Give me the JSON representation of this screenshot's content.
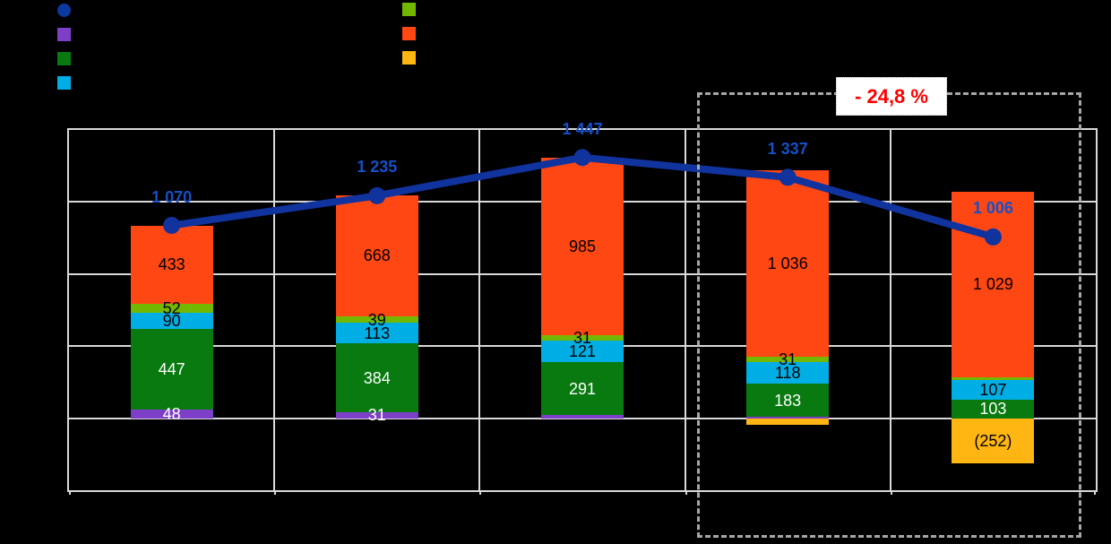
{
  "chart_data": {
    "type": "bar",
    "subtype": "stacked-bar-with-total-line",
    "title": "",
    "xlabel": "",
    "ylabel": "",
    "categories": [
      "",
      "",
      "",
      "",
      ""
    ],
    "ylim": [
      -400,
      1600
    ],
    "gridline_step": 400,
    "grid": "on",
    "series": [
      {
        "name": "purple-segment",
        "color": "#7E3FC8",
        "text_color": "#FFFFFF",
        "values": [
          48,
          31,
          19,
          8,
          0
        ],
        "labels": [
          "48",
          "31",
          "",
          "",
          ""
        ]
      },
      {
        "name": "dark-green-segment",
        "color": "#087A10",
        "text_color": "#FFFFFF",
        "values": [
          447,
          384,
          291,
          183,
          103
        ],
        "labels": [
          "447",
          "384",
          "291",
          "183",
          "103"
        ]
      },
      {
        "name": "cyan-segment",
        "color": "#00AEE6",
        "text_color": "#000000",
        "values": [
          90,
          113,
          121,
          118,
          107
        ],
        "labels": [
          "90",
          "113",
          "121",
          "118",
          "107"
        ]
      },
      {
        "name": "light-green-segment",
        "color": "#72B800",
        "text_color": "#000000",
        "values": [
          52,
          39,
          31,
          31,
          19
        ],
        "labels": [
          "52",
          "39",
          "31",
          "31",
          ""
        ]
      },
      {
        "name": "orange-segment",
        "color": "#FF4713",
        "text_color": "#000000",
        "values": [
          433,
          668,
          985,
          1036,
          1029
        ],
        "labels": [
          "433",
          "668",
          "985",
          "1 036",
          "1 029"
        ]
      },
      {
        "name": "yellow-segment",
        "color": "#FFB612",
        "text_color": "#000000",
        "values": [
          0,
          0,
          0,
          -39,
          -252
        ],
        "labels": [
          "",
          "",
          "",
          "",
          "(252)"
        ]
      }
    ],
    "line": {
      "name": "total-line",
      "color": "#10339E",
      "label_color": "#1550C8",
      "values": [
        1070,
        1235,
        1447,
        1337,
        1006
      ],
      "labels": [
        "1 070",
        "1 235",
        "1 447",
        "1 337",
        "1 006"
      ]
    },
    "annotation": {
      "text": "- 24,8 %",
      "text_color": "#FF0000",
      "box_color": "#FFFFFF",
      "applies_to_categories": [
        3,
        4
      ]
    },
    "colors": {
      "background": "#000000",
      "gridlines": "#D9D9D9",
      "frame": "#D9D9D9",
      "dashed_box": "#A6A6A6"
    },
    "legend_position": "top"
  },
  "legend": {
    "left": [
      {
        "shape": "circle",
        "color": "#0B399E",
        "name": "line-series",
        "label": ""
      },
      {
        "shape": "square",
        "color": "#7E3FC8",
        "name": "purple-series",
        "label": ""
      },
      {
        "shape": "square",
        "color": "#087A10",
        "name": "dark-green-series",
        "label": ""
      },
      {
        "shape": "square",
        "color": "#00AEE6",
        "name": "cyan-series",
        "label": ""
      }
    ],
    "right": [
      {
        "shape": "square",
        "color": "#72B800",
        "name": "light-green-series",
        "label": ""
      },
      {
        "shape": "square",
        "color": "#FF4713",
        "name": "orange-series",
        "label": ""
      },
      {
        "shape": "square",
        "color": "#FFB612",
        "name": "yellow-series",
        "label": ""
      }
    ]
  }
}
